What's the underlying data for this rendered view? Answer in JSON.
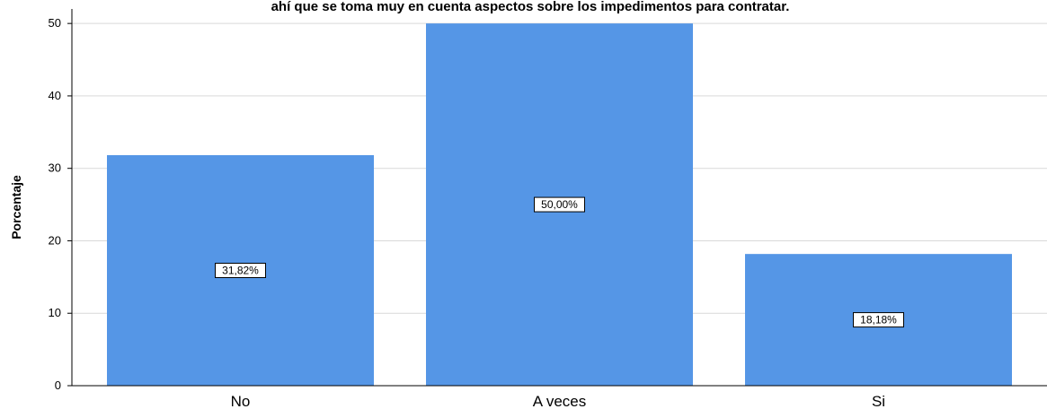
{
  "chart_data": {
    "type": "bar",
    "title": "ahí que se toma muy en cuenta aspectos sobre los impedimentos para contratar.",
    "xlabel": "",
    "ylabel": "Porcentaje",
    "categories": [
      "No",
      "A veces",
      "Si"
    ],
    "values": [
      31.82,
      50.0,
      18.18
    ],
    "data_labels": [
      "31,82%",
      "50,00%",
      "18,18%"
    ],
    "ylim": [
      0,
      52
    ],
    "yticks": [
      0,
      10,
      20,
      30,
      40,
      50
    ],
    "grid": true,
    "bar_color": "#5596E6",
    "legend": "none"
  }
}
